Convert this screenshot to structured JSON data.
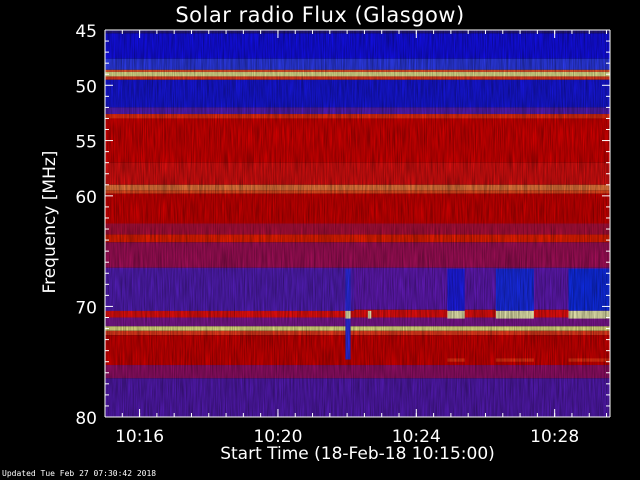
{
  "chart_data": {
    "type": "heatmap",
    "title": "Solar radio Flux (Glasgow)",
    "xlabel": "Start Time (18-Feb-18 10:15:00)",
    "ylabel": "Frequency [MHz]",
    "x_ticks": [
      {
        "minutes": 1,
        "label": "10:16"
      },
      {
        "minutes": 5,
        "label": "10:20"
      },
      {
        "minutes": 9,
        "label": "10:24"
      },
      {
        "minutes": 13,
        "label": "10:28"
      }
    ],
    "x_range_minutes": [
      0,
      14.6
    ],
    "y_ticks": [
      45,
      50,
      55,
      60,
      70,
      80
    ],
    "y_range_mhz": [
      45,
      80
    ],
    "colors": {
      "background": "#000000",
      "low": "#0000ff",
      "mid": "#6a1cc6",
      "high": "#ff0000",
      "peak": "#ffff80",
      "axis": "#ffffff"
    },
    "footer": "Updated Tue Feb 27 07:30:42 2018"
  }
}
